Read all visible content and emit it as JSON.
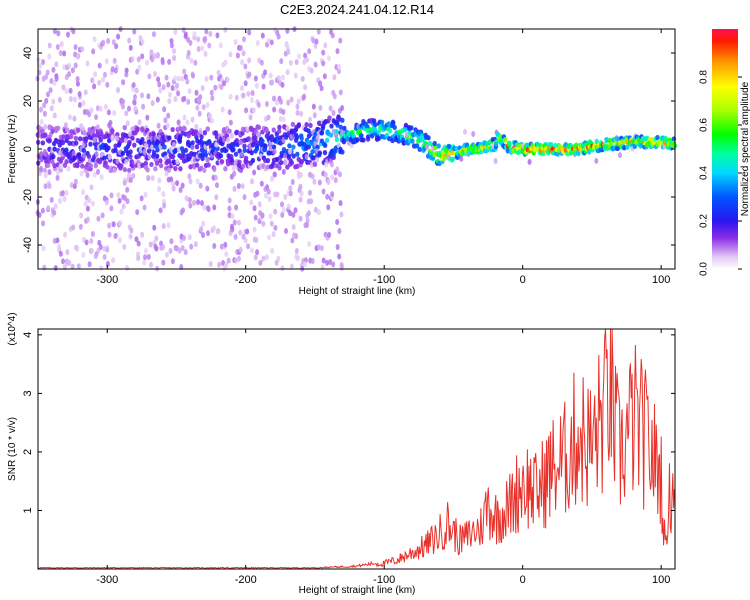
{
  "title": "C2E3.2024.241.04.12.R14",
  "chart_data": [
    {
      "type": "heatmap",
      "xlabel": "Height of straight line (km)",
      "ylabel": "Frequency (Hz)",
      "xlim": [
        -350,
        110
      ],
      "ylim": [
        -50,
        50
      ],
      "xticks": [
        -300,
        -200,
        -100,
        0,
        100
      ],
      "yticks": [
        -40,
        -20,
        0,
        20,
        40
      ],
      "colorbar": {
        "label": "Normalized spectral amplitude",
        "range": [
          0,
          1
        ],
        "ticks": [
          "0.0",
          "0.2",
          "0.4",
          "0.6",
          "0.8"
        ]
      },
      "ridge": {
        "x": [
          -350,
          -300,
          -250,
          -200,
          -150,
          -130,
          -110,
          -100,
          -90,
          -80,
          -70,
          -60,
          -50,
          -40,
          -30,
          -20,
          -17,
          -10,
          0,
          20,
          40,
          60,
          80,
          100,
          110
        ],
        "freq": [
          0,
          0,
          0,
          0,
          2,
          6,
          8,
          8,
          7,
          5,
          2,
          -3,
          -2,
          0,
          0,
          2,
          5,
          1,
          0,
          0,
          0,
          2,
          3,
          3,
          2
        ],
        "peak_amplitude": [
          0.2,
          0.25,
          0.25,
          0.25,
          0.35,
          0.45,
          0.5,
          0.55,
          0.5,
          0.55,
          0.6,
          0.8,
          0.75,
          0.7,
          0.75,
          0.8,
          0.7,
          0.85,
          0.9,
          0.9,
          0.9,
          0.85,
          0.8,
          0.8,
          0.75
        ]
      }
    },
    {
      "type": "line",
      "xlabel": "Height of straight line (km)",
      "ylabel": "SNR (10 * v/v)",
      "y_multiplier": "(x10^4)",
      "xlim": [
        -350,
        110
      ],
      "ylim": [
        0,
        4.1
      ],
      "xticks": [
        -300,
        -200,
        -100,
        0,
        100
      ],
      "yticks": [
        1,
        2,
        3,
        4
      ],
      "color": "#e8312a",
      "series": [
        {
          "x": [
            -350,
            -300,
            -250,
            -200,
            -150,
            -120,
            -100,
            -90,
            -80,
            -70,
            -60,
            -55,
            -50,
            -45,
            -40,
            -30,
            -25,
            -20,
            -10,
            0,
            10,
            20,
            30,
            40,
            50,
            60,
            62,
            65,
            70,
            80,
            90,
            100,
            103,
            105,
            110
          ],
          "y": [
            0.02,
            0.02,
            0.02,
            0.02,
            0.02,
            0.05,
            0.12,
            0.2,
            0.35,
            0.5,
            0.75,
            1.0,
            0.8,
            0.6,
            0.7,
            0.9,
            1.4,
            1.1,
            1.3,
            1.9,
            1.6,
            2.1,
            2.3,
            2.9,
            2.6,
            3.5,
            4.05,
            3.3,
            2.4,
            3.2,
            2.7,
            2.0,
            0.4,
            1.4,
            1.9
          ]
        }
      ]
    }
  ]
}
